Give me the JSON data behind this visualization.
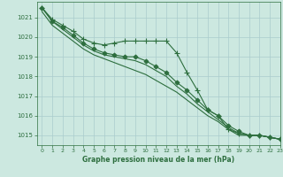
{
  "title": "Graphe pression niveau de la mer (hPa)",
  "bg_color": "#cce8e0",
  "grid_color": "#aacccc",
  "line_color": "#2d6e3e",
  "xlim": [
    -0.5,
    23
  ],
  "ylim": [
    1014.5,
    1021.8
  ],
  "xticks": [
    0,
    1,
    2,
    3,
    4,
    5,
    6,
    7,
    8,
    9,
    10,
    11,
    12,
    13,
    14,
    15,
    16,
    17,
    18,
    19,
    20,
    21,
    22,
    23
  ],
  "yticks": [
    1015,
    1016,
    1017,
    1018,
    1019,
    1020,
    1021
  ],
  "series": [
    {
      "x": [
        0,
        1,
        2,
        3,
        4,
        5,
        6,
        7,
        8,
        9,
        10,
        11,
        12,
        13,
        14,
        15,
        16,
        17,
        18,
        19,
        20,
        21,
        22,
        23
      ],
      "y": [
        1021.5,
        1020.9,
        1020.6,
        1020.3,
        1019.9,
        1019.7,
        1019.6,
        1019.7,
        1019.8,
        1019.8,
        1019.8,
        1019.8,
        1019.8,
        1019.2,
        1018.2,
        1017.3,
        1016.3,
        1016.0,
        1015.3,
        1015.1,
        1015.0,
        1015.0,
        1014.9,
        1014.8
      ],
      "marker": "+",
      "ms": 4
    },
    {
      "x": [
        0,
        1,
        2,
        3,
        4,
        5,
        6,
        7,
        8,
        9,
        10,
        11,
        12,
        13,
        14,
        15,
        16,
        17,
        18,
        19,
        20,
        21,
        22,
        23
      ],
      "y": [
        1021.5,
        1020.8,
        1020.5,
        1020.1,
        1019.7,
        1019.4,
        1019.2,
        1019.1,
        1019.0,
        1019.0,
        1018.8,
        1018.5,
        1018.2,
        1017.7,
        1017.3,
        1016.8,
        1016.3,
        1016.0,
        1015.5,
        1015.2,
        1015.0,
        1015.0,
        1014.9,
        1014.8
      ],
      "marker": "D",
      "ms": 2.5
    },
    {
      "x": [
        0,
        1,
        2,
        3,
        4,
        5,
        6,
        7,
        8,
        9,
        10,
        11,
        12,
        13,
        14,
        15,
        16,
        17,
        18,
        19,
        20,
        21,
        22,
        23
      ],
      "y": [
        1021.5,
        1020.8,
        1020.4,
        1020.0,
        1019.6,
        1019.3,
        1019.1,
        1019.0,
        1018.9,
        1018.8,
        1018.6,
        1018.3,
        1018.0,
        1017.5,
        1017.1,
        1016.6,
        1016.2,
        1015.8,
        1015.4,
        1015.1,
        1015.0,
        1015.0,
        1014.9,
        1014.8
      ],
      "marker": null,
      "ms": null
    },
    {
      "x": [
        0,
        1,
        2,
        3,
        4,
        5,
        6,
        7,
        8,
        9,
        10,
        11,
        12,
        13,
        14,
        15,
        16,
        17,
        18,
        19,
        20,
        21,
        22,
        23
      ],
      "y": [
        1021.3,
        1020.6,
        1020.2,
        1019.8,
        1019.4,
        1019.1,
        1018.9,
        1018.7,
        1018.5,
        1018.3,
        1018.1,
        1017.8,
        1017.5,
        1017.2,
        1016.8,
        1016.4,
        1016.0,
        1015.7,
        1015.3,
        1015.0,
        1015.0,
        1015.0,
        1014.9,
        1014.8
      ],
      "marker": null,
      "ms": null
    }
  ]
}
